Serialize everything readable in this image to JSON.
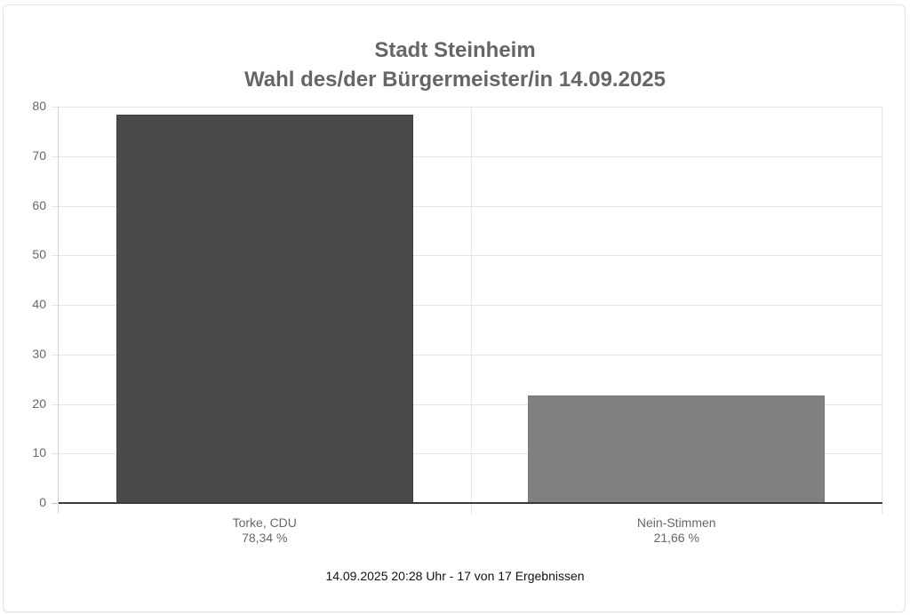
{
  "title": {
    "line1": "Stadt Steinheim",
    "line2": "Wahl des/der Bürgermeister/in 14.09.2025"
  },
  "y_axis": {
    "ticks": [
      "80",
      "70",
      "60",
      "50",
      "40",
      "30",
      "20",
      "10",
      "0"
    ]
  },
  "bars": [
    {
      "label": "Torke, CDU",
      "value_label": "78,34 %",
      "value": 78.34,
      "color": "#4a4a4a"
    },
    {
      "label": "Nein-Stimmen",
      "value_label": "21,66 %",
      "value": 21.66,
      "color": "#808080"
    }
  ],
  "footer": "14.09.2025 20:28 Uhr - 17 von 17 Ergebnissen",
  "chart_data": {
    "type": "bar",
    "title": "Stadt Steinheim — Wahl des/der Bürgermeister/in 14.09.2025",
    "categories": [
      "Torke, CDU",
      "Nein-Stimmen"
    ],
    "values": [
      78.34,
      21.66
    ],
    "value_labels": [
      "78,34 %",
      "21,66 %"
    ],
    "colors": [
      "#4a4a4a",
      "#808080"
    ],
    "xlabel": "",
    "ylabel": "",
    "ylim": [
      0,
      80
    ],
    "yticks": [
      0,
      10,
      20,
      30,
      40,
      50,
      60,
      70,
      80
    ],
    "grid": true,
    "legend": "none",
    "annotation": "14.09.2025 20:28 Uhr - 17 von 17 Ergebnissen"
  }
}
